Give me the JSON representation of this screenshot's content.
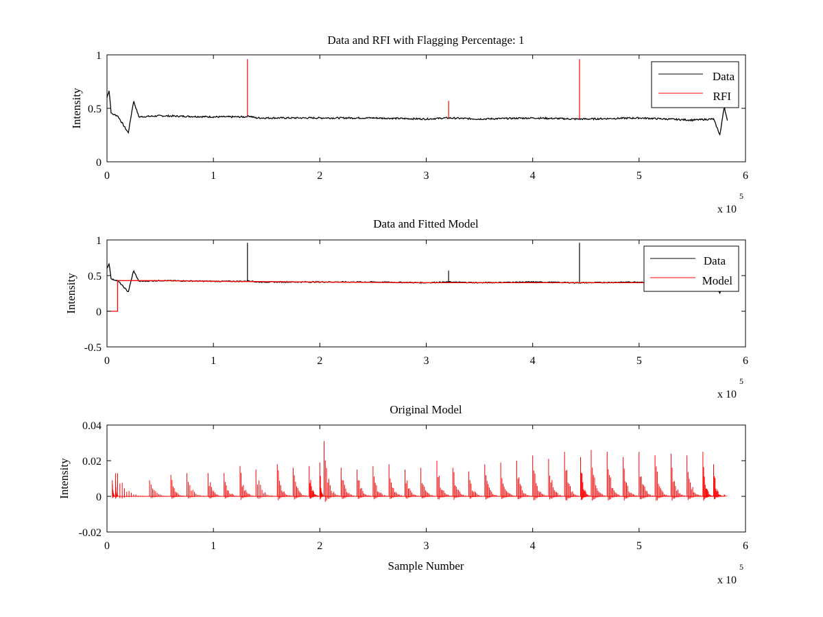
{
  "figure": {
    "background": "#ffffff",
    "colors": {
      "data": "#000000",
      "rfi": "#ff0000",
      "model": "#ff0000"
    }
  },
  "chart_data": [
    {
      "type": "line",
      "title": "Data and RFI with Flagging Percentage: 1",
      "xlabel": "",
      "ylabel": "Intensity",
      "xlim": [
        0,
        6
      ],
      "ylim": [
        0,
        1
      ],
      "x_multiplier": "x 10",
      "x_multiplier_exp": "5",
      "xticks": [
        "0",
        "1",
        "2",
        "3",
        "4",
        "5",
        "6"
      ],
      "yticks": [
        "0",
        "0.5",
        "1"
      ],
      "ytick_values": [
        0,
        0.5,
        1
      ],
      "legend_position": "top-right",
      "series": [
        {
          "name": "Data",
          "color": "#000000",
          "x": [
            0,
            0.02,
            0.04,
            0.1,
            0.2,
            0.25,
            0.3,
            0.5,
            1,
            1.3,
            1.33,
            1.4,
            2,
            2.5,
            3,
            3.2,
            3.5,
            4,
            4.4,
            4.5,
            5,
            5.5,
            5.7,
            5.76,
            5.8,
            5.83
          ],
          "values": [
            0.6,
            0.67,
            0.45,
            0.43,
            0.27,
            0.57,
            0.42,
            0.43,
            0.42,
            0.42,
            0.43,
            0.41,
            0.41,
            0.41,
            0.4,
            0.41,
            0.4,
            0.41,
            0.4,
            0.4,
            0.41,
            0.39,
            0.4,
            0.25,
            0.52,
            0.38
          ]
        },
        {
          "name": "RFI",
          "color": "#ff0000",
          "spikes": [
            {
              "x": 1.32,
              "y": 0.96
            },
            {
              "x": 3.21,
              "y": 0.57
            },
            {
              "x": 4.44,
              "y": 0.96
            }
          ]
        }
      ]
    },
    {
      "type": "line",
      "title": "Data and Fitted Model",
      "xlabel": "",
      "ylabel": "Intensity",
      "xlim": [
        0,
        6
      ],
      "ylim": [
        -0.5,
        1
      ],
      "x_multiplier": "x 10",
      "x_multiplier_exp": "5",
      "xticks": [
        "0",
        "1",
        "2",
        "3",
        "4",
        "5",
        "6"
      ],
      "yticks": [
        "-0.5",
        "0",
        "0.5",
        "1"
      ],
      "ytick_values": [
        -0.5,
        0,
        0.5,
        1
      ],
      "legend_position": "top-right",
      "series": [
        {
          "name": "Data",
          "color": "#000000",
          "x": [
            0,
            0.02,
            0.04,
            0.1,
            0.2,
            0.25,
            0.3,
            0.5,
            1,
            1.3,
            1.33,
            1.4,
            2,
            2.5,
            3,
            3.2,
            3.5,
            4,
            4.4,
            4.5,
            5,
            5.5,
            5.7,
            5.76,
            5.8,
            5.83
          ],
          "values": [
            0.6,
            0.67,
            0.45,
            0.43,
            0.27,
            0.57,
            0.42,
            0.43,
            0.42,
            0.42,
            0.43,
            0.41,
            0.41,
            0.41,
            0.4,
            0.41,
            0.4,
            0.41,
            0.4,
            0.4,
            0.41,
            0.39,
            0.4,
            0.25,
            0.52,
            0.38
          ],
          "spikes": [
            {
              "x": 1.32,
              "y": 0.96
            },
            {
              "x": 3.21,
              "y": 0.57
            },
            {
              "x": 4.44,
              "y": 0.96
            }
          ]
        },
        {
          "name": "Model",
          "color": "#ff0000",
          "x": [
            0,
            0.1,
            0.1,
            0.5,
            1,
            2,
            3,
            4,
            5,
            5.83
          ],
          "values": [
            0,
            0,
            0.43,
            0.43,
            0.42,
            0.41,
            0.4,
            0.4,
            0.4,
            0.39
          ]
        }
      ]
    },
    {
      "type": "line",
      "title": "Original Model",
      "xlabel": "Sample Number",
      "ylabel": "Intensity",
      "xlim": [
        0,
        6
      ],
      "ylim": [
        -0.02,
        0.04
      ],
      "x_multiplier": "x 10",
      "x_multiplier_exp": "5",
      "xticks": [
        "0",
        "1",
        "2",
        "3",
        "4",
        "5",
        "6"
      ],
      "yticks": [
        "-0.02",
        "0",
        "0.02",
        "0.04"
      ],
      "ytick_values": [
        -0.02,
        0,
        0.02,
        0.04
      ],
      "series": [
        {
          "color": "#ff0000",
          "x": [
            0.05,
            0.08,
            0.1,
            0.4,
            0.6,
            0.75,
            0.95,
            1.1,
            1.25,
            1.4,
            1.6,
            1.75,
            1.9,
            2.0,
            2.04,
            2.2,
            2.35,
            2.5,
            2.65,
            2.8,
            2.95,
            3.1,
            3.25,
            3.4,
            3.55,
            3.7,
            3.85,
            4.0,
            4.15,
            4.3,
            4.45,
            4.55,
            4.7,
            4.85,
            5.0,
            5.15,
            5.3,
            5.45,
            5.6,
            5.7,
            5.8
          ],
          "values": [
            0.009,
            0.013,
            0.013,
            0.009,
            0.012,
            0.013,
            0.013,
            0.013,
            0.017,
            0.015,
            0.018,
            0.016,
            0.017,
            0.019,
            0.031,
            0.016,
            0.015,
            0.017,
            0.018,
            0.015,
            0.016,
            0.02,
            0.016,
            0.014,
            0.018,
            0.019,
            0.02,
            0.023,
            0.021,
            0.025,
            0.022,
            0.026,
            0.025,
            0.022,
            0.025,
            0.023,
            0.024,
            0.023,
            0.025,
            0.018,
            0.001
          ]
        }
      ]
    }
  ]
}
